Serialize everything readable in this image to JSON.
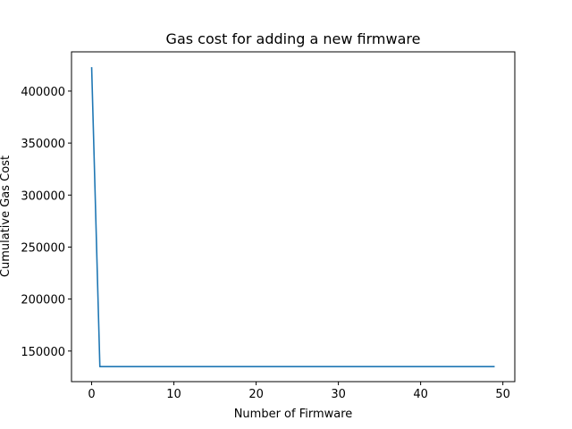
{
  "chart_data": {
    "type": "line",
    "title": "Gas cost for adding a new firmware",
    "xlabel": "Number of Firmware",
    "ylabel": "Cumulative Gas Cost",
    "xlim": [
      -2.45,
      51.45
    ],
    "ylim": [
      120590,
      437750
    ],
    "xticks": [
      0,
      10,
      20,
      30,
      40,
      50
    ],
    "yticks": [
      150000,
      200000,
      250000,
      300000,
      350000,
      400000
    ],
    "grid": false,
    "series": [
      {
        "color": "#1f77b4",
        "x": [
          0,
          1,
          2,
          3,
          4,
          5,
          6,
          7,
          8,
          9,
          10,
          11,
          12,
          13,
          14,
          15,
          16,
          17,
          18,
          19,
          20,
          21,
          22,
          23,
          24,
          25,
          26,
          27,
          28,
          29,
          30,
          31,
          32,
          33,
          34,
          35,
          36,
          37,
          38,
          39,
          40,
          41,
          42,
          43,
          44,
          45,
          46,
          47,
          48,
          49
        ],
        "y": [
          423000,
          135000,
          135000,
          135000,
          135000,
          135000,
          135000,
          135000,
          135000,
          135000,
          135000,
          135000,
          135000,
          135000,
          135000,
          135000,
          135000,
          135000,
          135000,
          135000,
          135000,
          135000,
          135000,
          135000,
          135000,
          135000,
          135000,
          135000,
          135000,
          135000,
          135000,
          135000,
          135000,
          135000,
          135000,
          135000,
          135000,
          135000,
          135000,
          135000,
          135000,
          135000,
          135000,
          135000,
          135000,
          135000,
          135000,
          135000,
          135000,
          135000
        ]
      }
    ]
  }
}
